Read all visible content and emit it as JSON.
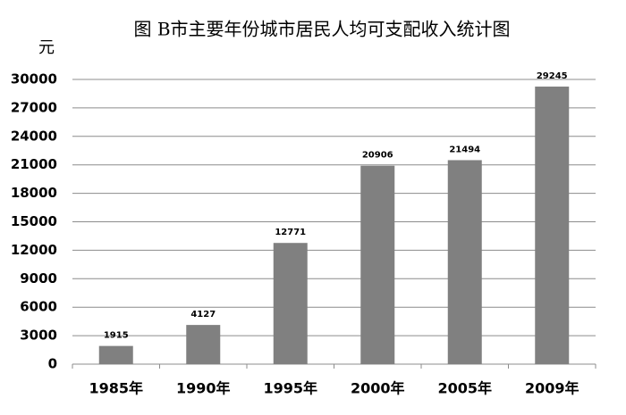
{
  "chart_data": {
    "type": "bar",
    "title": "图 B市主要年份城市居民人均可支配收入统计图",
    "y_label": "元",
    "categories": [
      "1985年",
      "1990年",
      "1995年",
      "2000年",
      "2005年",
      "2009年"
    ],
    "values": [
      1915,
      4127,
      12771,
      20906,
      21494,
      29245
    ],
    "color": "#808080",
    "ylim": [
      0,
      30000
    ],
    "yticks": [
      0,
      3000,
      6000,
      9000,
      12000,
      15000,
      18000,
      21000,
      24000,
      27000,
      30000
    ],
    "grid": true
  }
}
